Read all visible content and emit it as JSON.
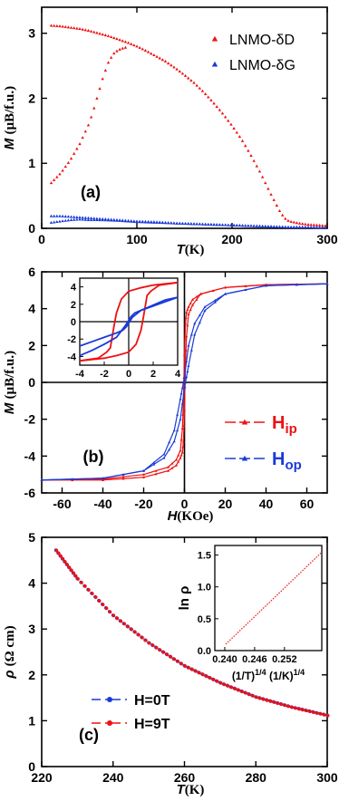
{
  "colors": {
    "red": "#ee1111",
    "blue": "#1a3ad8",
    "axis": "#000000"
  },
  "chart_data": [
    {
      "panel_label": "(a)",
      "type": "scatter",
      "xlabel": "T",
      "xunit": "(K)",
      "ylabel": "M",
      "yunit": "(μB/f.u.)",
      "xlim": [
        0,
        300
      ],
      "ylim": [
        0,
        3.4
      ],
      "xticks": [
        "0",
        "100",
        "200",
        "300"
      ],
      "yticks": [
        "0",
        "1",
        "2",
        "3"
      ],
      "legend_position": "top-right",
      "series": [
        {
          "name": "LNMO-δD",
          "color": "#ee1111",
          "marker": "triangle",
          "branches": [
            [
              [
                10,
                3.12
              ],
              [
                20,
                3.11
              ],
              [
                30,
                3.09
              ],
              [
                40,
                3.07
              ],
              [
                50,
                3.04
              ],
              [
                60,
                3.0
              ],
              [
                70,
                2.96
              ],
              [
                80,
                2.91
              ],
              [
                90,
                2.86
              ],
              [
                100,
                2.8
              ],
              [
                110,
                2.73
              ],
              [
                120,
                2.65
              ],
              [
                130,
                2.57
              ],
              [
                140,
                2.47
              ],
              [
                150,
                2.36
              ],
              [
                160,
                2.24
              ],
              [
                170,
                2.1
              ],
              [
                180,
                1.94
              ],
              [
                190,
                1.77
              ],
              [
                200,
                1.58
              ],
              [
                210,
                1.37
              ],
              [
                220,
                1.12
              ],
              [
                230,
                0.85
              ],
              [
                240,
                0.55
              ],
              [
                250,
                0.27
              ],
              [
                255,
                0.16
              ],
              [
                260,
                0.11
              ],
              [
                270,
                0.08
              ],
              [
                280,
                0.06
              ],
              [
                290,
                0.05
              ],
              [
                300,
                0.04
              ]
            ],
            [
              [
                10,
                0.7
              ],
              [
                20,
                0.85
              ],
              [
                30,
                1.05
              ],
              [
                40,
                1.3
              ],
              [
                50,
                1.62
              ],
              [
                55,
                1.85
              ],
              [
                60,
                2.1
              ],
              [
                65,
                2.35
              ],
              [
                70,
                2.55
              ],
              [
                75,
                2.68
              ],
              [
                80,
                2.74
              ],
              [
                85,
                2.77
              ],
              [
                90,
                2.79
              ]
            ]
          ]
        },
        {
          "name": "LNMO-δG",
          "color": "#1a3ad8",
          "marker": "triangle",
          "branches": [
            [
              [
                10,
                0.19
              ],
              [
                20,
                0.19
              ],
              [
                40,
                0.17
              ],
              [
                60,
                0.15
              ],
              [
                80,
                0.13
              ],
              [
                100,
                0.11
              ],
              [
                120,
                0.1
              ],
              [
                140,
                0.08
              ],
              [
                160,
                0.07
              ],
              [
                180,
                0.06
              ],
              [
                200,
                0.05
              ],
              [
                220,
                0.04
              ],
              [
                240,
                0.03
              ],
              [
                260,
                0.02
              ],
              [
                280,
                0.02
              ],
              [
                300,
                0.01
              ]
            ],
            [
              [
                10,
                0.09
              ],
              [
                20,
                0.11
              ],
              [
                30,
                0.13
              ],
              [
                40,
                0.14
              ],
              [
                50,
                0.13
              ],
              [
                60,
                0.13
              ],
              [
                80,
                0.12
              ],
              [
                100,
                0.1
              ],
              [
                120,
                0.09
              ],
              [
                140,
                0.08
              ],
              [
                160,
                0.07
              ],
              [
                180,
                0.06
              ],
              [
                200,
                0.05
              ],
              [
                220,
                0.04
              ],
              [
                240,
                0.03
              ],
              [
                260,
                0.02
              ],
              [
                280,
                0.02
              ],
              [
                300,
                0.01
              ]
            ]
          ]
        }
      ]
    },
    {
      "panel_label": "(b)",
      "type": "line",
      "xlabel": "H",
      "xunit": "(KOe)",
      "ylabel": "M",
      "yunit": "(μB/f.u.)",
      "xlim": [
        -70,
        70
      ],
      "ylim": [
        -6,
        6
      ],
      "xticks": [
        "-60",
        "-40",
        "-20",
        "0",
        "20",
        "40",
        "60"
      ],
      "yticks": [
        "-6",
        "-4",
        "-2",
        "0",
        "2",
        "4",
        "6"
      ],
      "legend_position": "bottom-right",
      "series": [
        {
          "name": "H",
          "sub": "ip",
          "color": "#ee1111",
          "branches": [
            [
              [
                -70,
                -5.3
              ],
              [
                -40,
                -5.25
              ],
              [
                -20,
                -5.0
              ],
              [
                -8,
                -4.6
              ],
              [
                -4,
                -4.2
              ],
              [
                -2,
                -3.7
              ],
              [
                -1,
                -2.5
              ],
              [
                -0.5,
                -1.0
              ],
              [
                0,
                1.5
              ],
              [
                0.5,
                3.2
              ],
              [
                1,
                3.8
              ],
              [
                2,
                4.1
              ],
              [
                4,
                4.5
              ],
              [
                8,
                4.8
              ],
              [
                20,
                5.15
              ],
              [
                40,
                5.3
              ],
              [
                70,
                5.35
              ]
            ],
            [
              [
                70,
                5.35
              ],
              [
                40,
                5.3
              ],
              [
                20,
                5.15
              ],
              [
                8,
                4.8
              ],
              [
                4,
                4.2
              ],
              [
                2,
                3.7
              ],
              [
                1,
                2.5
              ],
              [
                0.5,
                1.0
              ],
              [
                0,
                -1.5
              ],
              [
                -0.5,
                -3.2
              ],
              [
                -1,
                -3.8
              ],
              [
                -2,
                -4.1
              ],
              [
                -4,
                -4.5
              ],
              [
                -8,
                -4.8
              ],
              [
                -20,
                -5.15
              ],
              [
                -40,
                -5.3
              ],
              [
                -70,
                -5.3
              ]
            ]
          ]
        },
        {
          "name": "H",
          "sub": "op",
          "color": "#1a3ad8",
          "branches": [
            [
              [
                -70,
                -5.3
              ],
              [
                -40,
                -5.2
              ],
              [
                -20,
                -4.8
              ],
              [
                -10,
                -4.1
              ],
              [
                -5,
                -3.2
              ],
              [
                -2,
                -2.0
              ],
              [
                0,
                -0.3
              ],
              [
                1,
                0.3
              ],
              [
                2,
                0.9
              ],
              [
                5,
                2.6
              ],
              [
                10,
                3.9
              ],
              [
                20,
                4.8
              ],
              [
                40,
                5.25
              ],
              [
                70,
                5.35
              ]
            ],
            [
              [
                70,
                5.35
              ],
              [
                40,
                5.25
              ],
              [
                20,
                4.8
              ],
              [
                10,
                4.1
              ],
              [
                5,
                3.2
              ],
              [
                2,
                2.0
              ],
              [
                0,
                0.3
              ],
              [
                -1,
                -0.3
              ],
              [
                -2,
                -0.9
              ],
              [
                -5,
                -2.6
              ],
              [
                -10,
                -3.9
              ],
              [
                -20,
                -4.8
              ],
              [
                -40,
                -5.2
              ],
              [
                -70,
                -5.3
              ]
            ]
          ]
        }
      ],
      "inset": {
        "xlim": [
          -4,
          4
        ],
        "ylim": [
          -5,
          5
        ],
        "xticks": [
          "-4",
          "-2",
          "0",
          "2",
          "4"
        ],
        "yticks": [
          "-4",
          "-2",
          "0",
          "2",
          "4"
        ],
        "series": [
          {
            "color": "#ee1111",
            "branches": [
              [
                [
                  -4,
                  -4.5
                ],
                [
                  -2.5,
                  -4.2
                ],
                [
                  -1.8,
                  -3.5
                ],
                [
                  -1.5,
                  -3.0
                ],
                [
                  -1.2,
                  -0.5
                ],
                [
                  -1.0,
                  1.0
                ],
                [
                  -0.6,
                  2.6
                ],
                [
                  0,
                  3.5
                ],
                [
                  1,
                  3.9
                ],
                [
                  2,
                  4.2
                ],
                [
                  4,
                  4.5
                ]
              ],
              [
                [
                  4,
                  4.5
                ],
                [
                  2.5,
                  4.2
                ],
                [
                  1.8,
                  3.5
                ],
                [
                  1.5,
                  3.0
                ],
                [
                  1.2,
                  0.5
                ],
                [
                  1.0,
                  -1.0
                ],
                [
                  0.6,
                  -2.6
                ],
                [
                  0,
                  -3.5
                ],
                [
                  -1,
                  -3.9
                ],
                [
                  -2,
                  -4.2
                ],
                [
                  -4,
                  -4.5
                ]
              ]
            ]
          },
          {
            "color": "#1a3ad8",
            "branches": [
              [
                [
                  -4,
                  -3.9
                ],
                [
                  -3,
                  -3.3
                ],
                [
                  -2,
                  -2.6
                ],
                [
                  -1,
                  -1.8
                ],
                [
                  -0.3,
                  -0.5
                ],
                [
                  0.2,
                  0.6
                ],
                [
                  0.5,
                  1.0
                ],
                [
                  1,
                  1.3
                ],
                [
                  2,
                  1.8
                ],
                [
                  3,
                  2.3
                ],
                [
                  4,
                  2.8
                ]
              ],
              [
                [
                  4,
                  2.8
                ],
                [
                  3,
                  2.5
                ],
                [
                  2,
                  1.9
                ],
                [
                  1,
                  1.3
                ],
                [
                  0.3,
                  0.5
                ],
                [
                  -0.2,
                  -0.6
                ],
                [
                  -0.5,
                  -1.0
                ],
                [
                  -1,
                  -1.3
                ],
                [
                  -2,
                  -1.8
                ],
                [
                  -3,
                  -2.3
                ],
                [
                  -4,
                  -2.8
                ]
              ]
            ]
          }
        ]
      }
    },
    {
      "panel_label": "(c)",
      "type": "scatter",
      "xlabel": "T",
      "xunit": "(K)",
      "ylabel": "ρ",
      "yunit": "(Ω cm)",
      "xlim": [
        220,
        300
      ],
      "ylim": [
        0,
        5
      ],
      "xticks": [
        "220",
        "240",
        "260",
        "280",
        "300"
      ],
      "yticks": [
        "0",
        "1",
        "2",
        "3",
        "4",
        "5"
      ],
      "legend_position": "bottom-left",
      "series": [
        {
          "name": "H=0T",
          "color": "#1a3ad8",
          "marker": "dot"
        },
        {
          "name": "H=9T",
          "color": "#ee1111",
          "marker": "dot"
        }
      ],
      "curve": [
        [
          224,
          4.72
        ],
        [
          230,
          4.1
        ],
        [
          240,
          3.3
        ],
        [
          250,
          2.7
        ],
        [
          260,
          2.2
        ],
        [
          270,
          1.83
        ],
        [
          280,
          1.52
        ],
        [
          290,
          1.3
        ],
        [
          300,
          1.12
        ]
      ],
      "inset": {
        "ylabel": "ln ρ",
        "xlabel_parts": [
          "(1/T)",
          "1/4",
          " (1/K)",
          "1/4"
        ],
        "xlim": [
          0.238,
          0.2595
        ],
        "ylim": [
          0,
          1.65
        ],
        "xticks": [
          "0.240",
          "0.246",
          "0.252"
        ],
        "yticks": [
          "0.0",
          "0.5",
          "1.0",
          "1.5"
        ],
        "line": [
          [
            0.2402,
            0.1
          ],
          [
            0.2593,
            1.53
          ]
        ]
      }
    }
  ]
}
